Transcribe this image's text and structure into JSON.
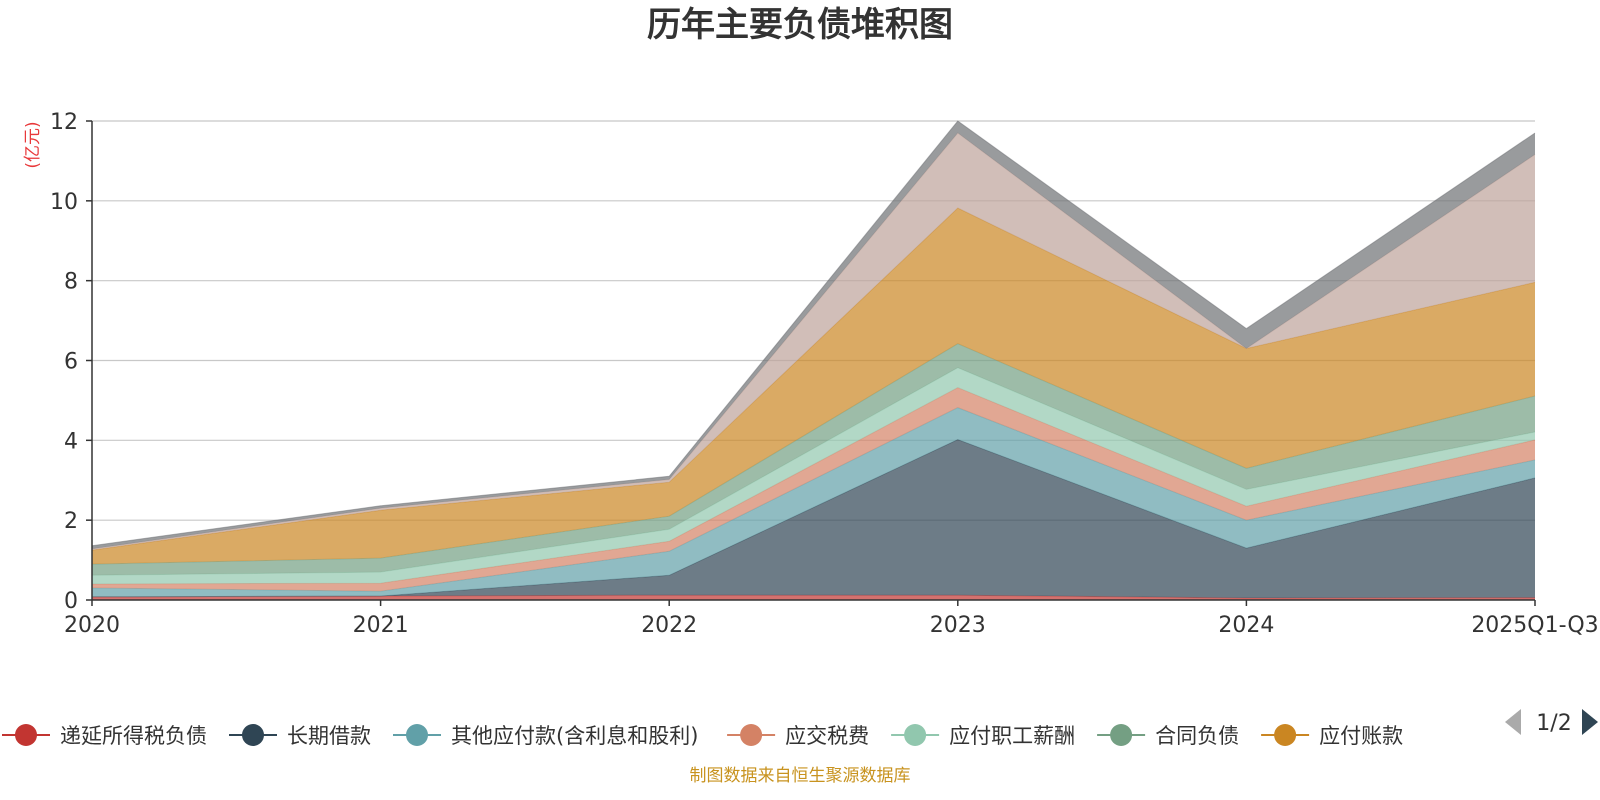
{
  "chart_data": {
    "type": "area",
    "stacked": true,
    "title": "历年主要负债堆积图",
    "unit_label": "(亿元)",
    "x": [
      "2020",
      "2021",
      "2022",
      "2023",
      "2024",
      "2025Q1-Q3"
    ],
    "ylim": [
      0,
      12
    ],
    "yticks": [
      "0",
      "2",
      "4",
      "6",
      "8",
      "10",
      "12"
    ],
    "grid": true,
    "series": [
      {
        "name": "递延所得税负债",
        "color": "#c23531",
        "values": [
          0.08,
          0.1,
          0.12,
          0.12,
          0.05,
          0.06
        ]
      },
      {
        "name": "长期借款",
        "color": "#2f4554",
        "values": [
          0.0,
          0.0,
          0.5,
          3.9,
          1.25,
          3.0
        ]
      },
      {
        "name": "其他应付款(含利息和股利)",
        "color": "#61a0a8",
        "values": [
          0.22,
          0.12,
          0.6,
          0.8,
          0.7,
          0.45
        ]
      },
      {
        "name": "应交税费",
        "color": "#d48265",
        "values": [
          0.1,
          0.2,
          0.25,
          0.5,
          0.35,
          0.5
        ]
      },
      {
        "name": "应付职工薪酬",
        "color": "#91c7ae",
        "values": [
          0.22,
          0.28,
          0.3,
          0.5,
          0.42,
          0.2
        ]
      },
      {
        "name": "合同负债",
        "color": "#749f83",
        "values": [
          0.28,
          0.35,
          0.33,
          0.6,
          0.53,
          0.9
        ]
      },
      {
        "name": "应付账款",
        "color": "#ca8622",
        "values": [
          0.35,
          1.2,
          0.85,
          3.4,
          3.0,
          2.85
        ]
      },
      {
        "name": "",
        "color": "#bda29a",
        "values": [
          0.03,
          0.05,
          0.07,
          1.88,
          0.0,
          3.2
        ]
      },
      {
        "name": "",
        "color": "#6e7074",
        "values": [
          0.08,
          0.06,
          0.08,
          0.3,
          0.5,
          0.54
        ]
      }
    ],
    "legend": {
      "placement": "bottom",
      "visible_labels": [
        "递延所得税负债",
        "长期借款",
        "其他应付款(含利息和股利)",
        "应交税费",
        "应付职工薪酬",
        "合同负债",
        "应付账款"
      ],
      "page": "1/2"
    }
  },
  "source_note": "制图数据来自恒生聚源数据库"
}
